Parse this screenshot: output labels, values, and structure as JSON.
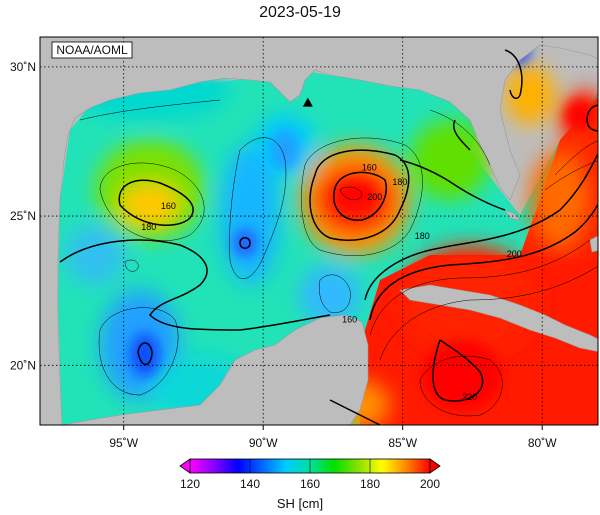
{
  "title": "2023-05-19",
  "credit": "NOAA/AOML",
  "map": {
    "lon_range": [
      -98,
      -78
    ],
    "lat_range": [
      18,
      31
    ],
    "lon_ticks": [
      {
        "value": -95,
        "label": "95˚W"
      },
      {
        "value": -90,
        "label": "90˚W"
      },
      {
        "value": -85,
        "label": "85˚W"
      },
      {
        "value": -80,
        "label": "80˚W"
      }
    ],
    "lat_ticks": [
      {
        "value": 20,
        "label": "20˚N"
      },
      {
        "value": 25,
        "label": "25˚N"
      },
      {
        "value": 30,
        "label": "30˚N"
      }
    ],
    "grid": true,
    "marker": {
      "lon": -88.4,
      "lat": 28.8,
      "shape": "triangle"
    },
    "contour_labels": [
      {
        "text": "160",
        "lon": -86.2,
        "lat": 26.6
      },
      {
        "text": "180",
        "lon": -85.1,
        "lat": 26.1
      },
      {
        "text": "200",
        "lon": -86.0,
        "lat": 25.6
      },
      {
        "text": "160",
        "lon": -93.4,
        "lat": 25.3
      },
      {
        "text": "180",
        "lon": -94.1,
        "lat": 24.6
      },
      {
        "text": "180",
        "lon": -84.3,
        "lat": 24.3
      },
      {
        "text": "200",
        "lon": -81.0,
        "lat": 23.7
      },
      {
        "text": "160",
        "lon": -86.9,
        "lat": 21.5
      },
      {
        "text": "220",
        "lon": -82.6,
        "lat": 18.9
      }
    ]
  },
  "colorbar": {
    "min": 120,
    "max": 200,
    "tick_labels": [
      "120",
      "140",
      "160",
      "180",
      "200"
    ],
    "label": "SH [cm]",
    "colors": [
      "#ff00ff",
      "#8800ff",
      "#0000ff",
      "#0066ff",
      "#00ccff",
      "#00e0a0",
      "#00e000",
      "#88e000",
      "#ffff00",
      "#ff8800",
      "#ff0000"
    ]
  },
  "colors": {
    "land": "#bdbdbd",
    "ocean_base": "#20e0c0",
    "contour": "#000000"
  }
}
